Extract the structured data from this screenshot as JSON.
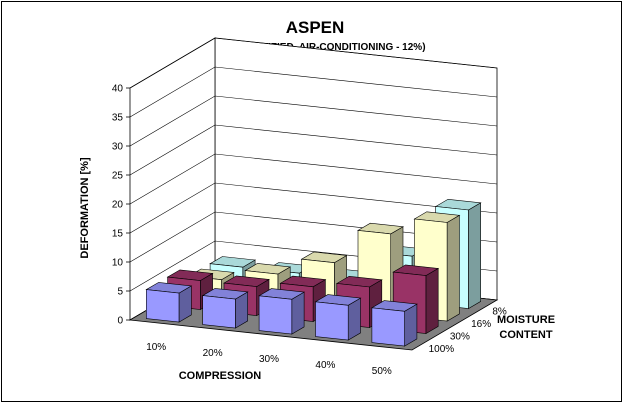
{
  "chart_data": {
    "type": "bar3d",
    "title": "ASPEN",
    "subtitle": "(NON-PLASTIFIED, AIR-CONDITIONING - 12%)",
    "ylabel": "DEFORMATION [%]",
    "xlabel": "COMPRESSION",
    "zlabel": [
      "MOISTURE",
      "CONTENT"
    ],
    "ylim": [
      0,
      40
    ],
    "yticks": [
      "0",
      "5",
      "10",
      "15",
      "20",
      "25",
      "30",
      "35",
      "40"
    ],
    "categories": [
      "10%",
      "20%",
      "30%",
      "40%",
      "50%"
    ],
    "series": [
      {
        "name": "8%",
        "color": "#c8ffff",
        "values": [
          3,
          3,
          3,
          8,
          17
        ]
      },
      {
        "name": "16%",
        "color": "#ffffcc",
        "values": [
          3,
          5,
          8,
          14,
          17
        ]
      },
      {
        "name": "30%",
        "color": "#993366",
        "values": [
          5,
          5,
          6,
          7,
          10
        ]
      },
      {
        "name": "100%",
        "color": "#9999ff",
        "values": [
          5,
          5,
          6,
          6,
          6
        ]
      }
    ],
    "floor_color": "#808080",
    "grid": true
  }
}
